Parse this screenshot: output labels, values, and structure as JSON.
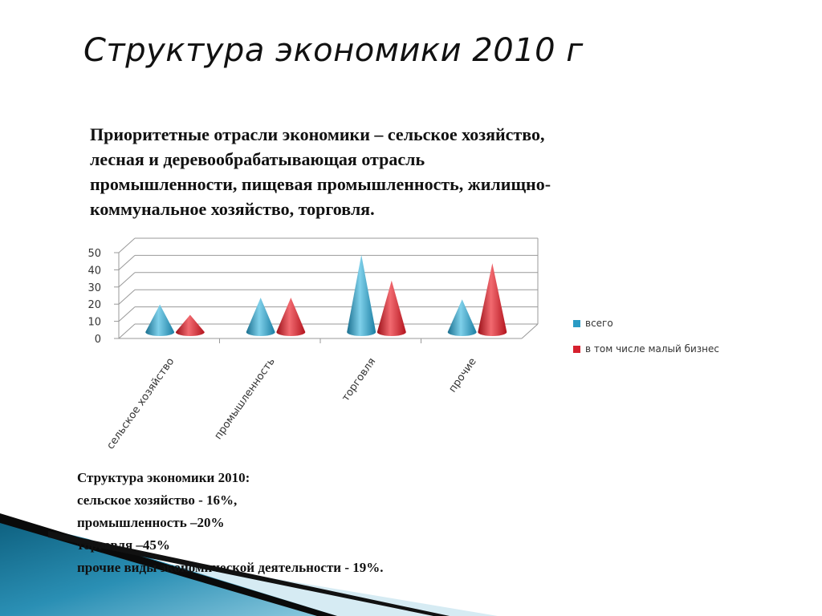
{
  "slide": {
    "title": "Структура экономики 2010 г",
    "intro_lines": [
      "Приоритетные отрасли экономики – сельское хозяйство,",
      "лесная и  деревообрабатывающая отрасль",
      "промышленности, пищевая промышленность, жилищно-",
      "коммунальное хозяйство, торговля."
    ],
    "summary_lines": [
      "Структура экономики 2010:",
      "сельское хозяйство - 16%,",
      "промышленность –20%",
      "торговля –45%",
      "прочие виды экономической деятельности - 19%."
    ]
  },
  "chart_data": {
    "type": "bar",
    "subtype": "3d-cone",
    "categories": [
      "сельское хозяйство",
      "промышленность",
      "торговля",
      "прочие"
    ],
    "series": [
      {
        "name": "всего",
        "color": "#2a9bc4",
        "values": [
          16,
          20,
          45,
          19
        ]
      },
      {
        "name": "в том числе малый бизнес",
        "color": "#d6202e",
        "values": [
          10,
          20,
          30,
          40
        ]
      }
    ],
    "y_ticks": [
      "0",
      "10",
      "20",
      "30",
      "40",
      "50"
    ],
    "ylim": [
      0,
      50
    ],
    "grid": true,
    "legend_position": "right"
  },
  "colors": {
    "accent_dark": "#0a0a0a",
    "accent_teal": "#1f7fa0",
    "accent_light": "#cfe7f0"
  }
}
